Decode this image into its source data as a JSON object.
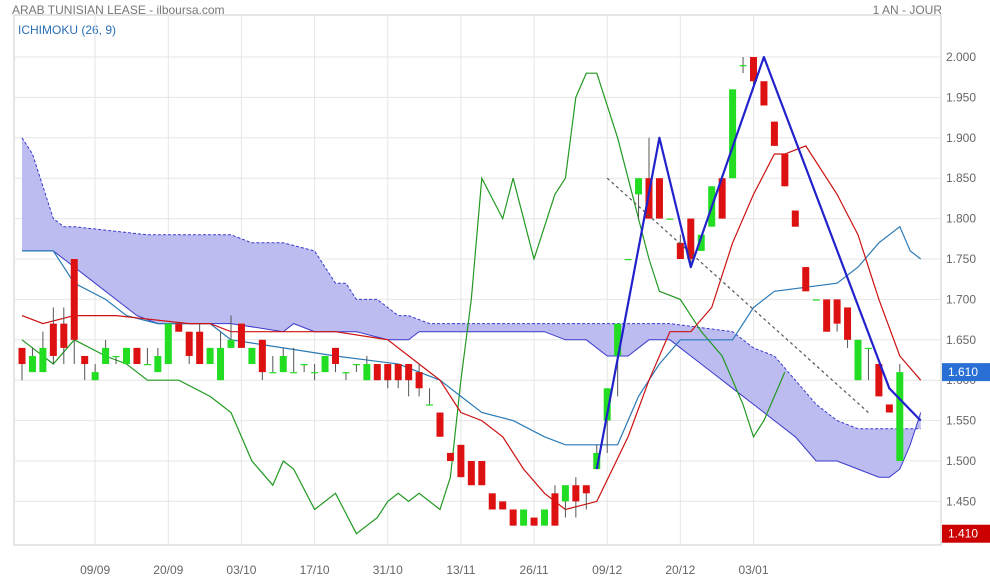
{
  "header": {
    "title": "ARAB TUNISIAN LEASE - ilboursa.com",
    "period": "1 AN - JOUR",
    "indicator": "ICHIMOKU (26, 9)"
  },
  "colors": {
    "up": "#22dd22",
    "down": "#dd1111",
    "cloud": "#b8b8f0",
    "cloud_edge": "#3a3acc",
    "tenkan": "#cc1111",
    "kijun": "#2a7ab5",
    "chikou": "#229922",
    "pattern": "#2222cc",
    "last_label": "#2a6fd6",
    "low_label": "#cc0000"
  },
  "chart_data": {
    "type": "candlestick",
    "title": "ARAB TUNISIAN LEASE - ilboursa.com",
    "indicator": "ICHIMOKU (26, 9)",
    "ylim": [
      1.4,
      2.02
    ],
    "y_ticks": [
      "2.000",
      "1.950",
      "1.900",
      "1.850",
      "1.800",
      "1.750",
      "1.700",
      "1.650",
      "1.600",
      "1.550",
      "1.500",
      "1.450"
    ],
    "x_ticks": [
      {
        "i": 7,
        "label": "09/09"
      },
      {
        "i": 14,
        "label": "20/09"
      },
      {
        "i": 21,
        "label": "03/10"
      },
      {
        "i": 28,
        "label": "17/10"
      },
      {
        "i": 35,
        "label": "31/10"
      },
      {
        "i": 42,
        "label": "13/11"
      },
      {
        "i": 49,
        "label": "26/11"
      },
      {
        "i": 56,
        "label": "09/12"
      },
      {
        "i": 63,
        "label": "20/12"
      },
      {
        "i": 70,
        "label": "03/01"
      }
    ],
    "price_labels": {
      "last": "1.610",
      "low": "1.410"
    },
    "candles": [
      [
        1.64,
        1.64,
        1.6,
        1.62
      ],
      [
        1.61,
        1.64,
        1.61,
        1.63
      ],
      [
        1.61,
        1.66,
        1.61,
        1.64
      ],
      [
        1.67,
        1.69,
        1.62,
        1.63
      ],
      [
        1.67,
        1.69,
        1.62,
        1.64
      ],
      [
        1.75,
        1.75,
        1.62,
        1.65
      ],
      [
        1.63,
        1.63,
        1.6,
        1.62
      ],
      [
        1.6,
        1.62,
        1.6,
        1.61
      ],
      [
        1.62,
        1.65,
        1.62,
        1.64
      ],
      [
        1.63,
        1.63,
        1.62,
        1.63
      ],
      [
        1.62,
        1.64,
        1.62,
        1.64
      ],
      [
        1.64,
        1.64,
        1.62,
        1.62
      ],
      [
        1.62,
        1.64,
        1.62,
        1.62
      ],
      [
        1.61,
        1.64,
        1.61,
        1.63
      ],
      [
        1.62,
        1.67,
        1.62,
        1.67
      ],
      [
        1.67,
        1.67,
        1.66,
        1.66
      ],
      [
        1.66,
        1.66,
        1.62,
        1.63
      ],
      [
        1.66,
        1.67,
        1.62,
        1.62
      ],
      [
        1.62,
        1.64,
        1.62,
        1.64
      ],
      [
        1.6,
        1.66,
        1.6,
        1.64
      ],
      [
        1.64,
        1.68,
        1.64,
        1.65
      ],
      [
        1.67,
        1.67,
        1.64,
        1.64
      ],
      [
        1.62,
        1.64,
        1.62,
        1.64
      ],
      [
        1.65,
        1.65,
        1.6,
        1.61
      ],
      [
        1.61,
        1.63,
        1.61,
        1.61
      ],
      [
        1.61,
        1.64,
        1.61,
        1.63
      ],
      [
        1.61,
        1.64,
        1.61,
        1.61
      ],
      [
        1.62,
        1.62,
        1.61,
        1.62
      ],
      [
        1.61,
        1.62,
        1.6,
        1.61
      ],
      [
        1.61,
        1.63,
        1.61,
        1.63
      ],
      [
        1.64,
        1.64,
        1.61,
        1.62
      ],
      [
        1.61,
        1.61,
        1.6,
        1.61
      ],
      [
        1.62,
        1.62,
        1.61,
        1.62
      ],
      [
        1.6,
        1.63,
        1.6,
        1.62
      ],
      [
        1.62,
        1.62,
        1.6,
        1.6
      ],
      [
        1.62,
        1.62,
        1.59,
        1.6
      ],
      [
        1.62,
        1.62,
        1.59,
        1.6
      ],
      [
        1.62,
        1.62,
        1.58,
        1.6
      ],
      [
        1.61,
        1.62,
        1.58,
        1.59
      ],
      [
        1.57,
        1.59,
        1.57,
        1.57
      ],
      [
        1.56,
        1.56,
        1.53,
        1.53
      ],
      [
        1.51,
        1.51,
        1.5,
        1.5
      ],
      [
        1.52,
        1.52,
        1.48,
        1.48
      ],
      [
        1.5,
        1.5,
        1.47,
        1.47
      ],
      [
        1.5,
        1.5,
        1.47,
        1.47
      ],
      [
        1.46,
        1.46,
        1.44,
        1.44
      ],
      [
        1.45,
        1.45,
        1.44,
        1.44
      ],
      [
        1.44,
        1.44,
        1.42,
        1.42
      ],
      [
        1.42,
        1.44,
        1.42,
        1.44
      ],
      [
        1.43,
        1.43,
        1.42,
        1.42
      ],
      [
        1.42,
        1.44,
        1.42,
        1.44
      ],
      [
        1.46,
        1.47,
        1.42,
        1.42
      ],
      [
        1.45,
        1.47,
        1.43,
        1.47
      ],
      [
        1.47,
        1.48,
        1.43,
        1.45
      ],
      [
        1.47,
        1.47,
        1.44,
        1.46
      ],
      [
        1.49,
        1.52,
        1.49,
        1.51
      ],
      [
        1.55,
        1.59,
        1.51,
        1.59
      ],
      [
        1.63,
        1.67,
        1.58,
        1.67
      ],
      [
        1.75,
        1.75,
        1.75,
        1.75
      ],
      [
        1.83,
        1.85,
        1.8,
        1.85
      ],
      [
        1.85,
        1.9,
        1.8,
        1.8
      ],
      [
        1.85,
        1.85,
        1.8,
        1.8
      ],
      [
        1.8,
        1.8,
        1.8,
        1.8
      ],
      [
        1.77,
        1.78,
        1.75,
        1.75
      ],
      [
        1.8,
        1.8,
        1.74,
        1.75
      ],
      [
        1.76,
        1.78,
        1.76,
        1.78
      ],
      [
        1.79,
        1.84,
        1.79,
        1.84
      ],
      [
        1.85,
        1.85,
        1.8,
        1.8
      ],
      [
        1.85,
        1.96,
        1.85,
        1.96
      ],
      [
        1.99,
        2.0,
        1.98,
        1.99
      ],
      [
        2.0,
        2.0,
        1.96,
        1.97
      ],
      [
        1.97,
        1.97,
        1.94,
        1.94
      ],
      [
        1.92,
        1.92,
        1.89,
        1.89
      ],
      [
        1.88,
        1.88,
        1.84,
        1.84
      ],
      [
        1.81,
        1.81,
        1.79,
        1.79
      ],
      [
        1.74,
        1.74,
        1.71,
        1.71
      ],
      [
        1.7,
        1.7,
        1.7,
        1.7
      ],
      [
        1.7,
        1.7,
        1.66,
        1.66
      ],
      [
        1.7,
        1.7,
        1.66,
        1.67
      ],
      [
        1.69,
        1.69,
        1.64,
        1.65
      ],
      [
        1.6,
        1.65,
        1.6,
        1.65
      ],
      [
        1.64,
        1.64,
        1.6,
        1.64
      ],
      [
        1.62,
        1.62,
        1.58,
        1.58
      ],
      [
        1.57,
        1.57,
        1.56,
        1.56
      ],
      [
        1.5,
        1.62,
        1.5,
        1.61
      ]
    ],
    "tenkan": [
      [
        0,
        1.68
      ],
      [
        2,
        1.67
      ],
      [
        5,
        1.68
      ],
      [
        9,
        1.68
      ],
      [
        16,
        1.67
      ],
      [
        18,
        1.67
      ],
      [
        20,
        1.66
      ],
      [
        30,
        1.66
      ],
      [
        35,
        1.65
      ],
      [
        38,
        1.62
      ],
      [
        40,
        1.6
      ],
      [
        42,
        1.56
      ],
      [
        44,
        1.55
      ],
      [
        46,
        1.53
      ],
      [
        48,
        1.49
      ],
      [
        50,
        1.46
      ],
      [
        52,
        1.44
      ],
      [
        55,
        1.45
      ],
      [
        58,
        1.53
      ],
      [
        60,
        1.6
      ],
      [
        62,
        1.66
      ],
      [
        64,
        1.66
      ],
      [
        66,
        1.69
      ],
      [
        68,
        1.77
      ],
      [
        70,
        1.83
      ],
      [
        72,
        1.88
      ],
      [
        73,
        1.88
      ],
      [
        75,
        1.89
      ],
      [
        78,
        1.83
      ],
      [
        80,
        1.78
      ],
      [
        82,
        1.7
      ],
      [
        84,
        1.63
      ],
      [
        86,
        1.6
      ]
    ],
    "kijun": [
      [
        0,
        1.76
      ],
      [
        3,
        1.76
      ],
      [
        5,
        1.72
      ],
      [
        8,
        1.7
      ],
      [
        10,
        1.68
      ],
      [
        13,
        1.67
      ],
      [
        18,
        1.67
      ],
      [
        20,
        1.65
      ],
      [
        25,
        1.64
      ],
      [
        30,
        1.63
      ],
      [
        36,
        1.62
      ],
      [
        40,
        1.6
      ],
      [
        42,
        1.58
      ],
      [
        44,
        1.56
      ],
      [
        47,
        1.55
      ],
      [
        50,
        1.53
      ],
      [
        52,
        1.52
      ],
      [
        55,
        1.52
      ],
      [
        57,
        1.52
      ],
      [
        59,
        1.58
      ],
      [
        61,
        1.62
      ],
      [
        63,
        1.65
      ],
      [
        68,
        1.65
      ],
      [
        70,
        1.69
      ],
      [
        72,
        1.71
      ],
      [
        78,
        1.72
      ],
      [
        80,
        1.74
      ],
      [
        82,
        1.77
      ],
      [
        84,
        1.79
      ],
      [
        85,
        1.76
      ],
      [
        86,
        1.75
      ]
    ],
    "chikou": [
      [
        0,
        1.65
      ],
      [
        3,
        1.62
      ],
      [
        5,
        1.65
      ],
      [
        8,
        1.63
      ],
      [
        10,
        1.62
      ],
      [
        12,
        1.6
      ],
      [
        15,
        1.6
      ],
      [
        18,
        1.58
      ],
      [
        20,
        1.56
      ],
      [
        22,
        1.5
      ],
      [
        24,
        1.47
      ],
      [
        25,
        1.5
      ],
      [
        26,
        1.49
      ],
      [
        28,
        1.44
      ],
      [
        30,
        1.46
      ],
      [
        32,
        1.41
      ],
      [
        34,
        1.43
      ],
      [
        35,
        1.45
      ],
      [
        36,
        1.46
      ],
      [
        37,
        1.45
      ],
      [
        38,
        1.46
      ],
      [
        40,
        1.44
      ],
      [
        41,
        1.48
      ],
      [
        42,
        1.6
      ],
      [
        43,
        1.7
      ],
      [
        44,
        1.85
      ],
      [
        46,
        1.8
      ],
      [
        47,
        1.85
      ],
      [
        49,
        1.75
      ],
      [
        51,
        1.83
      ],
      [
        52,
        1.85
      ],
      [
        53,
        1.95
      ],
      [
        54,
        1.98
      ],
      [
        55,
        1.98
      ],
      [
        57,
        1.9
      ],
      [
        58,
        1.85
      ],
      [
        59,
        1.8
      ],
      [
        60,
        1.75
      ],
      [
        61,
        1.71
      ],
      [
        63,
        1.7
      ],
      [
        65,
        1.66
      ],
      [
        67,
        1.63
      ],
      [
        69,
        1.57
      ],
      [
        70,
        1.53
      ],
      [
        71,
        1.55
      ],
      [
        73,
        1.61
      ]
    ],
    "cloud_upper": [
      [
        0,
        1.9
      ],
      [
        1,
        1.88
      ],
      [
        2,
        1.84
      ],
      [
        3,
        1.8
      ],
      [
        4,
        1.79
      ],
      [
        5,
        1.79
      ],
      [
        12,
        1.78
      ],
      [
        14,
        1.78
      ],
      [
        20,
        1.78
      ],
      [
        22,
        1.77
      ],
      [
        25,
        1.77
      ],
      [
        28,
        1.76
      ],
      [
        29,
        1.74
      ],
      [
        30,
        1.72
      ],
      [
        31,
        1.72
      ],
      [
        32,
        1.7
      ],
      [
        34,
        1.7
      ],
      [
        36,
        1.68
      ],
      [
        37,
        1.68
      ],
      [
        39,
        1.67
      ],
      [
        41,
        1.67
      ],
      [
        50,
        1.67
      ],
      [
        60,
        1.67
      ],
      [
        62,
        1.67
      ],
      [
        68,
        1.66
      ],
      [
        70,
        1.64
      ],
      [
        72,
        1.63
      ],
      [
        74,
        1.6
      ],
      [
        76,
        1.57
      ],
      [
        78,
        1.55
      ],
      [
        80,
        1.54
      ],
      [
        83,
        1.54
      ],
      [
        86,
        1.54
      ]
    ],
    "cloud_lower": [
      [
        0,
        1.76
      ],
      [
        3,
        1.76
      ],
      [
        5,
        1.74
      ],
      [
        7,
        1.72
      ],
      [
        9,
        1.7
      ],
      [
        11,
        1.68
      ],
      [
        13,
        1.67
      ],
      [
        16,
        1.67
      ],
      [
        20,
        1.67
      ],
      [
        25,
        1.66
      ],
      [
        26,
        1.67
      ],
      [
        28,
        1.66
      ],
      [
        32,
        1.66
      ],
      [
        35,
        1.65
      ],
      [
        37,
        1.65
      ],
      [
        38,
        1.66
      ],
      [
        50,
        1.66
      ],
      [
        52,
        1.65
      ],
      [
        54,
        1.65
      ],
      [
        56,
        1.63
      ],
      [
        58,
        1.63
      ],
      [
        60,
        1.65
      ],
      [
        62,
        1.65
      ],
      [
        64,
        1.63
      ],
      [
        66,
        1.61
      ],
      [
        68,
        1.59
      ],
      [
        70,
        1.57
      ],
      [
        72,
        1.55
      ],
      [
        74,
        1.53
      ],
      [
        76,
        1.5
      ],
      [
        78,
        1.5
      ],
      [
        80,
        1.49
      ],
      [
        82,
        1.48
      ],
      [
        83,
        1.48
      ],
      [
        84,
        1.49
      ],
      [
        85,
        1.52
      ],
      [
        86,
        1.56
      ]
    ],
    "pattern_line": [
      [
        55,
        1.49
      ],
      [
        61,
        1.9
      ],
      [
        64,
        1.74
      ],
      [
        71,
        2.0
      ],
      [
        83,
        1.59
      ],
      [
        86,
        1.55
      ]
    ],
    "trend_line": [
      [
        56,
        1.85
      ],
      [
        81,
        1.56
      ]
    ]
  }
}
